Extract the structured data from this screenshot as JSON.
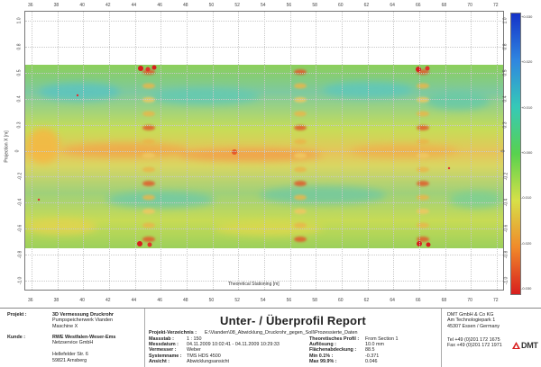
{
  "plot": {
    "x_ticks_top": [
      "36",
      "38",
      "40",
      "42",
      "44",
      "46",
      "48",
      "50",
      "52",
      "54",
      "56",
      "58",
      "60",
      "62",
      "64",
      "66",
      "68",
      "70",
      "72"
    ],
    "x_ticks_bottom": [
      "36",
      "38",
      "40",
      "42",
      "44",
      "46",
      "48",
      "50",
      "52",
      "54",
      "56",
      "58",
      "60",
      "62",
      "64",
      "66",
      "68",
      "70",
      "72"
    ],
    "y_ticks_left": [
      "1.0",
      "0.8",
      "0.5",
      "0.4",
      "0.3",
      "0",
      "-0.2",
      "-0.4",
      "-0.6",
      "-0.8",
      "-1.0"
    ],
    "y_ticks_right": [
      "1.0",
      "0.8",
      "0.5",
      "0.4",
      "0.3",
      "0",
      "-0.2",
      "-0.4",
      "-0.6",
      "-0.8",
      "-1.0"
    ],
    "x_label": "Theoretical Stationing [m]",
    "y_label": "Projection X [m]"
  },
  "colorbar": {
    "labels": [
      "+0.030",
      "+0.020",
      "+0.010",
      "+0.000",
      "-0.010",
      "-0.020",
      "-0.030"
    ],
    "colors": [
      "#1432c8",
      "#2f86e0",
      "#36c9b7",
      "#58d24e",
      "#d7e048",
      "#f08a2a",
      "#d81e1e"
    ]
  },
  "footer": {
    "project_label": "Projekt :",
    "project_lines": [
      "3D Vermessung Druckrohr",
      "Pumpspeicherwerk Vianden",
      "Maschine X"
    ],
    "client_label": "Kunde :",
    "client_lines": [
      "RWE Westfalen-Weser-Ems",
      "Netzservice GmbH",
      "",
      "Hellefelder Str. 6",
      "59821 Arnsberg"
    ],
    "title": "Unter- / Überprofil Report",
    "directory_label": "Projekt-Verzeichnis :",
    "directory_value": "E:\\Vianden\\08_Abwicklung_Druckrohr_gegen_Soll\\Prozessierte_Daten",
    "left_keys": [
      "Massstab :",
      "Messdatum :",
      "Vermesser :",
      "Systemname :",
      "Ansicht :"
    ],
    "left_values": [
      "1 : 150",
      "04.11.2009 10:02:41 - 04.11.2009 10:29:33",
      "Weber",
      "TMS HDS 4500",
      "Abwicklungsansicht"
    ],
    "right_keys": [
      "Theoretisches Profil :",
      "Auflösung :",
      "Flächenabdeckung :",
      "Min 0.1% :",
      "Max 99.9% :"
    ],
    "right_values": [
      "From Section 1",
      "10.0 mm",
      "88.5",
      "-0.371",
      "0.046"
    ],
    "company_lines": [
      "DMT GmbH & Co KG",
      "Am Technologiepark 1",
      "45307 Essen / Germany"
    ],
    "phone": "Tel +49 (0)201 172 1675",
    "fax": "Fax +49 (0)201 172 1971",
    "logo_text": "DMT"
  }
}
